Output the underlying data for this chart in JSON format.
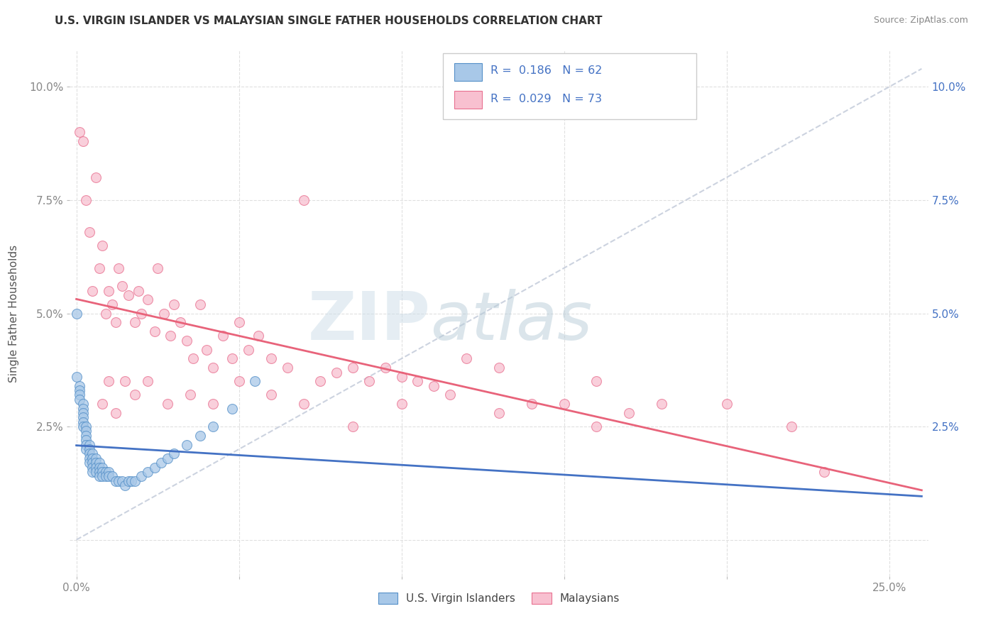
{
  "title": "U.S. VIRGIN ISLANDER VS MALAYSIAN SINGLE FATHER HOUSEHOLDS CORRELATION CHART",
  "source": "Source: ZipAtlas.com",
  "ylabel_label": "Single Father Households",
  "xlim": [
    -0.002,
    0.262
  ],
  "ylim": [
    -0.008,
    0.108
  ],
  "vi_color": "#a8c8e8",
  "vi_edge_color": "#5590c8",
  "malay_color": "#f8c0d0",
  "malay_edge_color": "#e87090",
  "vi_trendline_color": "#4472c4",
  "malay_trendline_color": "#e8637a",
  "grid_color": "#e0e0e0",
  "diag_color": "#c0c8d8",
  "watermark_color": "#d8e8f0",
  "vi_x": [
    0.0,
    0.001,
    0.001,
    0.001,
    0.001,
    0.002,
    0.002,
    0.002,
    0.002,
    0.002,
    0.002,
    0.003,
    0.003,
    0.003,
    0.003,
    0.003,
    0.003,
    0.004,
    0.004,
    0.004,
    0.004,
    0.004,
    0.005,
    0.005,
    0.005,
    0.005,
    0.005,
    0.006,
    0.006,
    0.006,
    0.006,
    0.007,
    0.007,
    0.007,
    0.007,
    0.008,
    0.008,
    0.008,
    0.009,
    0.009,
    0.01,
    0.01,
    0.011,
    0.012,
    0.013,
    0.014,
    0.015,
    0.016,
    0.017,
    0.018,
    0.02,
    0.022,
    0.024,
    0.026,
    0.028,
    0.03,
    0.034,
    0.038,
    0.042,
    0.048,
    0.055,
    0.0
  ],
  "vi_y": [
    0.036,
    0.034,
    0.033,
    0.032,
    0.031,
    0.03,
    0.029,
    0.028,
    0.027,
    0.026,
    0.025,
    0.025,
    0.024,
    0.023,
    0.022,
    0.021,
    0.02,
    0.021,
    0.02,
    0.019,
    0.018,
    0.017,
    0.019,
    0.018,
    0.017,
    0.016,
    0.015,
    0.018,
    0.017,
    0.016,
    0.015,
    0.017,
    0.016,
    0.015,
    0.014,
    0.016,
    0.015,
    0.014,
    0.015,
    0.014,
    0.015,
    0.014,
    0.014,
    0.013,
    0.013,
    0.013,
    0.012,
    0.013,
    0.013,
    0.013,
    0.014,
    0.015,
    0.016,
    0.017,
    0.018,
    0.019,
    0.021,
    0.023,
    0.025,
    0.029,
    0.035,
    0.05
  ],
  "malay_x": [
    0.001,
    0.002,
    0.003,
    0.004,
    0.005,
    0.006,
    0.007,
    0.008,
    0.009,
    0.01,
    0.011,
    0.012,
    0.013,
    0.014,
    0.016,
    0.018,
    0.019,
    0.02,
    0.022,
    0.024,
    0.025,
    0.027,
    0.029,
    0.03,
    0.032,
    0.034,
    0.036,
    0.038,
    0.04,
    0.042,
    0.045,
    0.048,
    0.05,
    0.053,
    0.056,
    0.06,
    0.065,
    0.07,
    0.075,
    0.08,
    0.085,
    0.09,
    0.095,
    0.1,
    0.105,
    0.11,
    0.115,
    0.12,
    0.13,
    0.14,
    0.15,
    0.16,
    0.17,
    0.18,
    0.2,
    0.22,
    0.008,
    0.01,
    0.012,
    0.015,
    0.018,
    0.022,
    0.028,
    0.035,
    0.042,
    0.05,
    0.06,
    0.07,
    0.085,
    0.1,
    0.13,
    0.16,
    0.23
  ],
  "malay_y": [
    0.09,
    0.088,
    0.075,
    0.068,
    0.055,
    0.08,
    0.06,
    0.065,
    0.05,
    0.055,
    0.052,
    0.048,
    0.06,
    0.056,
    0.054,
    0.048,
    0.055,
    0.05,
    0.053,
    0.046,
    0.06,
    0.05,
    0.045,
    0.052,
    0.048,
    0.044,
    0.04,
    0.052,
    0.042,
    0.038,
    0.045,
    0.04,
    0.048,
    0.042,
    0.045,
    0.04,
    0.038,
    0.075,
    0.035,
    0.037,
    0.038,
    0.035,
    0.038,
    0.036,
    0.035,
    0.034,
    0.032,
    0.04,
    0.038,
    0.03,
    0.03,
    0.035,
    0.028,
    0.03,
    0.03,
    0.025,
    0.03,
    0.035,
    0.028,
    0.035,
    0.032,
    0.035,
    0.03,
    0.032,
    0.03,
    0.035,
    0.032,
    0.03,
    0.025,
    0.03,
    0.028,
    0.025,
    0.015
  ]
}
